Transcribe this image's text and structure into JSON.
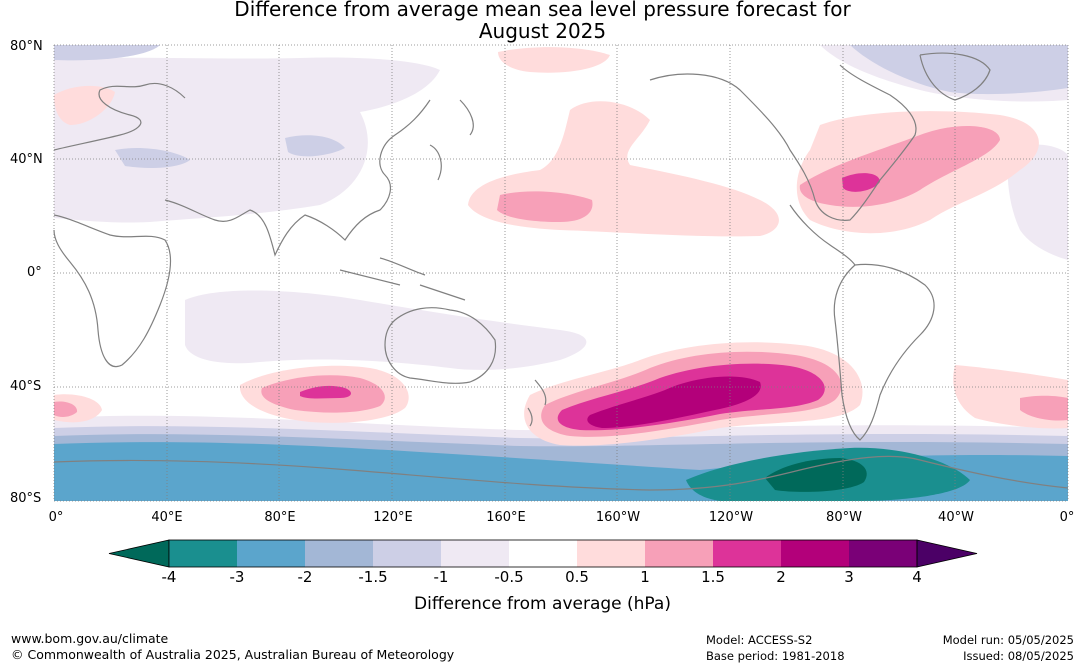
{
  "title_line1": "Difference from average mean sea level pressure forecast for",
  "title_line2": "August 2025",
  "lat_labels": [
    "80°N",
    "40°N",
    "0°",
    "40°S",
    "80°S"
  ],
  "lon_labels": [
    "0°",
    "40°E",
    "80°E",
    "120°E",
    "160°E",
    "160°W",
    "120°W",
    "80°W",
    "40°W",
    "0°"
  ],
  "colorbar": {
    "title": "Difference from average (hPa)",
    "ticks": [
      "-4",
      "-3",
      "-2",
      "-1.5",
      "-1",
      "-0.5",
      "0.5",
      "1",
      "1.5",
      "2",
      "3",
      "4"
    ],
    "colors": {
      "below_min": "#00695a",
      "bins": [
        "#1a8f8f",
        "#5ba5cc",
        "#a3b7d6",
        "#cdcfe6",
        "#efe9f3",
        "#ffffff",
        "#ffdcdc",
        "#f7a0b8",
        "#dd3399",
        "#b3007a",
        "#7a0077"
      ],
      "above_max": "#4b0066"
    }
  },
  "map_colors": {
    "land_outline": "#808080",
    "grid": "#7f7f7f"
  },
  "footer": {
    "site": "www.bom.gov.au/climate",
    "copyright": "© Commonwealth of Australia 2025, Australian Bureau of Meteorology",
    "model": "Model: ACCESS-S2",
    "base_period": "Base period: 1981-2018",
    "model_run": "Model run: 05/05/2025",
    "issued": "Issued: 08/05/2025"
  }
}
